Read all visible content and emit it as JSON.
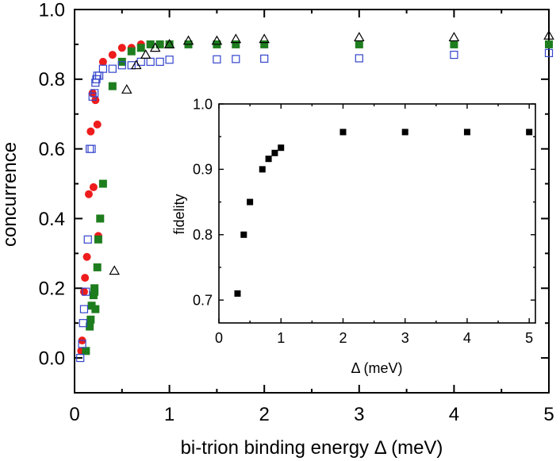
{
  "chart_data": [
    {
      "type": "scatter",
      "xlabel": "bi-trion binding energy Δ (meV)",
      "ylabel": "concurrence",
      "xlim": [
        0,
        5
      ],
      "ylim": [
        -0.1,
        1.0
      ],
      "xticks": [
        0,
        1,
        2,
        3,
        4,
        5
      ],
      "xtick_labels": [
        "0",
        "1",
        "2",
        "3",
        "4",
        "5"
      ],
      "yticks": [
        0.0,
        0.2,
        0.4,
        0.6,
        0.8,
        1.0
      ],
      "ytick_labels": [
        "0.0",
        "0.2",
        "0.4",
        "0.6",
        "0.8",
        "1.0"
      ],
      "series": [
        {
          "name": "red circles",
          "marker": "circle-filled",
          "color": "#ee1c1c",
          "points": [
            [
              0.07,
              0.02
            ],
            [
              0.08,
              0.05
            ],
            [
              0.1,
              0.19
            ],
            [
              0.11,
              0.23
            ],
            [
              0.13,
              0.29
            ],
            [
              0.15,
              0.47
            ],
            [
              0.17,
              0.65
            ],
            [
              0.19,
              0.76
            ],
            [
              0.2,
              0.49
            ],
            [
              0.22,
              0.74
            ],
            [
              0.24,
              0.67
            ],
            [
              0.25,
              0.35
            ],
            [
              0.3,
              0.85
            ],
            [
              0.4,
              0.87
            ],
            [
              0.5,
              0.89
            ],
            [
              0.6,
              0.89
            ],
            [
              0.7,
              0.9
            ],
            [
              0.8,
              0.9
            ],
            [
              0.9,
              0.9
            ],
            [
              1.0,
              0.9
            ]
          ]
        },
        {
          "name": "green squares",
          "marker": "square-filled",
          "color": "#1e7d1e",
          "points": [
            [
              0.12,
              0.02
            ],
            [
              0.16,
              0.09
            ],
            [
              0.17,
              0.11
            ],
            [
              0.18,
              0.15
            ],
            [
              0.2,
              0.18
            ],
            [
              0.21,
              0.19
            ],
            [
              0.21,
              0.2
            ],
            [
              0.22,
              0.14
            ],
            [
              0.24,
              0.26
            ],
            [
              0.25,
              0.34
            ],
            [
              0.27,
              0.4
            ],
            [
              0.3,
              0.5
            ],
            [
              0.4,
              0.78
            ],
            [
              0.5,
              0.85
            ],
            [
              0.6,
              0.88
            ],
            [
              0.7,
              0.89
            ],
            [
              0.8,
              0.9
            ],
            [
              0.9,
              0.9
            ],
            [
              1.0,
              0.9
            ],
            [
              1.2,
              0.9
            ],
            [
              1.5,
              0.9
            ],
            [
              1.7,
              0.9
            ],
            [
              2.0,
              0.9
            ],
            [
              3.0,
              0.9
            ],
            [
              4.0,
              0.9
            ],
            [
              5.0,
              0.9
            ]
          ]
        },
        {
          "name": "blue open squares",
          "marker": "square-open",
          "color": "#3344cc",
          "points": [
            [
              0.06,
              0.0
            ],
            [
              0.08,
              0.04
            ],
            [
              0.09,
              0.1
            ],
            [
              0.1,
              0.14
            ],
            [
              0.12,
              0.19
            ],
            [
              0.14,
              0.34
            ],
            [
              0.16,
              0.6
            ],
            [
              0.18,
              0.6
            ],
            [
              0.19,
              0.75
            ],
            [
              0.21,
              0.76
            ],
            [
              0.22,
              0.79
            ],
            [
              0.23,
              0.8
            ],
            [
              0.24,
              0.81
            ],
            [
              0.26,
              0.81
            ],
            [
              0.3,
              0.83
            ],
            [
              0.4,
              0.83
            ],
            [
              0.5,
              0.84
            ],
            [
              0.6,
              0.84
            ],
            [
              0.7,
              0.85
            ],
            [
              0.8,
              0.85
            ],
            [
              0.9,
              0.85
            ],
            [
              1.0,
              0.856
            ],
            [
              1.5,
              0.857
            ],
            [
              1.7,
              0.858
            ],
            [
              2.0,
              0.859
            ],
            [
              3.0,
              0.86
            ],
            [
              4.0,
              0.87
            ],
            [
              5.0,
              0.875
            ]
          ]
        },
        {
          "name": "open triangles",
          "marker": "triangle-open",
          "color": "#000000",
          "points": [
            [
              0.42,
              0.25
            ],
            [
              0.55,
              0.77
            ],
            [
              0.65,
              0.84
            ],
            [
              0.75,
              0.87
            ],
            [
              0.85,
              0.89
            ],
            [
              1.0,
              0.9
            ],
            [
              1.2,
              0.91
            ],
            [
              1.5,
              0.91
            ],
            [
              1.7,
              0.915
            ],
            [
              2.0,
              0.915
            ],
            [
              3.0,
              0.92
            ],
            [
              4.0,
              0.92
            ],
            [
              5.0,
              0.925
            ]
          ]
        }
      ]
    },
    {
      "type": "scatter",
      "xlabel": "Δ (meV)",
      "ylabel": "fidelity",
      "xlim": [
        0,
        5.1
      ],
      "ylim": [
        0.665,
        1.0
      ],
      "xticks": [
        0,
        1,
        2,
        3,
        4,
        5
      ],
      "xtick_labels": [
        "0",
        "1",
        "2",
        "3",
        "4",
        "5"
      ],
      "yticks": [
        0.7,
        0.8,
        0.9,
        1.0
      ],
      "ytick_labels": [
        "0.7",
        "0.8",
        "0.9",
        "1.0"
      ],
      "series": [
        {
          "name": "fidelity",
          "marker": "square-filled",
          "color": "#000000",
          "points": [
            [
              0.3,
              0.71
            ],
            [
              0.4,
              0.8
            ],
            [
              0.5,
              0.85
            ],
            [
              0.7,
              0.9
            ],
            [
              0.8,
              0.916
            ],
            [
              0.9,
              0.925
            ],
            [
              1.0,
              0.933
            ],
            [
              2.0,
              0.957
            ],
            [
              3.0,
              0.957
            ],
            [
              4.0,
              0.957
            ],
            [
              5.0,
              0.957
            ]
          ]
        }
      ]
    }
  ]
}
